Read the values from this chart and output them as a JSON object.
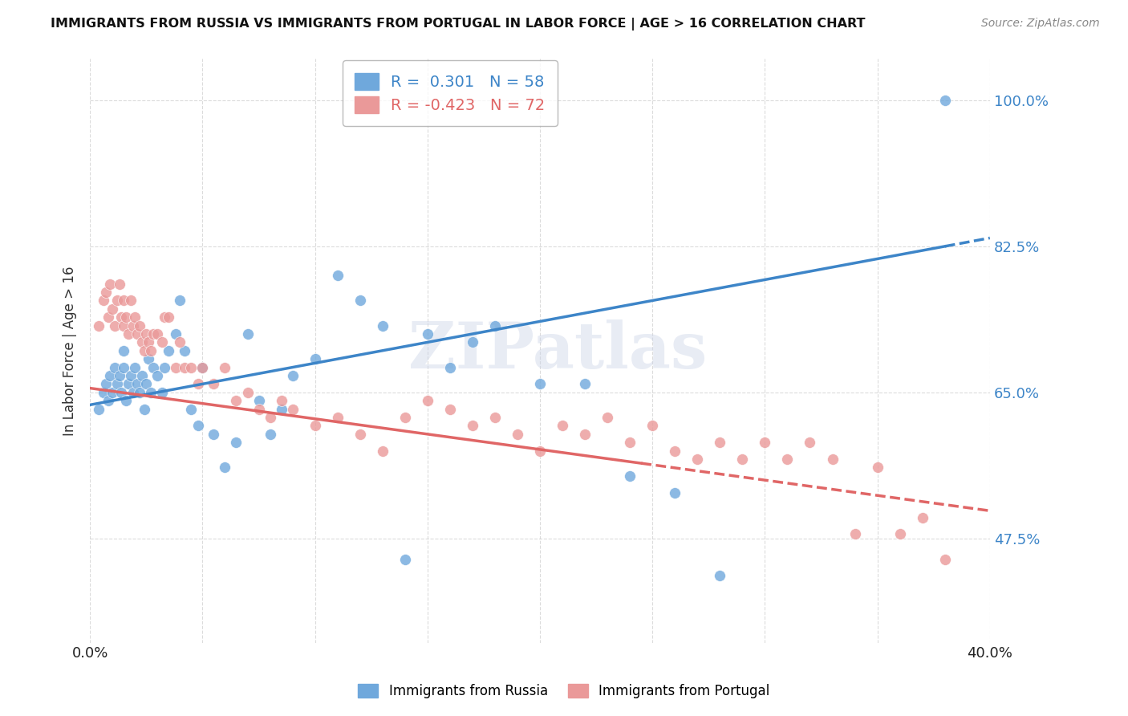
{
  "title": "IMMIGRANTS FROM RUSSIA VS IMMIGRANTS FROM PORTUGAL IN LABOR FORCE | AGE > 16 CORRELATION CHART",
  "source": "Source: ZipAtlas.com",
  "ylabel": "In Labor Force | Age > 16",
  "ytick_labels": [
    "100.0%",
    "82.5%",
    "65.0%",
    "47.5%"
  ],
  "ytick_values": [
    1.0,
    0.825,
    0.65,
    0.475
  ],
  "xlim": [
    0.0,
    0.4
  ],
  "ylim": [
    0.35,
    1.05
  ],
  "russia_color": "#6fa8dc",
  "portugal_color": "#ea9999",
  "russia_line_color": "#3d85c8",
  "portugal_line_color": "#e06666",
  "russia_R": 0.301,
  "russia_N": 58,
  "portugal_R": -0.423,
  "portugal_N": 72,
  "russia_line_x0": 0.0,
  "russia_line_y0": 0.635,
  "russia_line_x1": 0.38,
  "russia_line_y1": 0.825,
  "russia_line_xdash_start": 0.38,
  "russia_line_xdash_end": 0.4,
  "portugal_line_x0": 0.0,
  "portugal_line_y0": 0.655,
  "portugal_line_x1": 0.245,
  "portugal_line_y1": 0.565,
  "portugal_line_xdash_start": 0.245,
  "portugal_line_xdash_end": 0.4,
  "russia_scatter_x": [
    0.004,
    0.006,
    0.007,
    0.008,
    0.009,
    0.01,
    0.011,
    0.012,
    0.013,
    0.014,
    0.015,
    0.015,
    0.016,
    0.017,
    0.018,
    0.019,
    0.02,
    0.021,
    0.022,
    0.023,
    0.024,
    0.025,
    0.026,
    0.027,
    0.028,
    0.03,
    0.032,
    0.033,
    0.035,
    0.038,
    0.04,
    0.042,
    0.045,
    0.048,
    0.05,
    0.055,
    0.06,
    0.065,
    0.07,
    0.075,
    0.08,
    0.085,
    0.09,
    0.1,
    0.11,
    0.12,
    0.13,
    0.14,
    0.15,
    0.16,
    0.17,
    0.18,
    0.2,
    0.22,
    0.24,
    0.26,
    0.28,
    0.38
  ],
  "russia_scatter_y": [
    0.63,
    0.65,
    0.66,
    0.64,
    0.67,
    0.65,
    0.68,
    0.66,
    0.67,
    0.65,
    0.68,
    0.7,
    0.64,
    0.66,
    0.67,
    0.65,
    0.68,
    0.66,
    0.65,
    0.67,
    0.63,
    0.66,
    0.69,
    0.65,
    0.68,
    0.67,
    0.65,
    0.68,
    0.7,
    0.72,
    0.76,
    0.7,
    0.63,
    0.61,
    0.68,
    0.6,
    0.56,
    0.59,
    0.72,
    0.64,
    0.6,
    0.63,
    0.67,
    0.69,
    0.79,
    0.76,
    0.73,
    0.45,
    0.72,
    0.68,
    0.71,
    0.73,
    0.66,
    0.66,
    0.55,
    0.53,
    0.43,
    1.0
  ],
  "portugal_scatter_x": [
    0.004,
    0.006,
    0.007,
    0.008,
    0.009,
    0.01,
    0.011,
    0.012,
    0.013,
    0.014,
    0.015,
    0.015,
    0.016,
    0.017,
    0.018,
    0.019,
    0.02,
    0.021,
    0.022,
    0.023,
    0.024,
    0.025,
    0.026,
    0.027,
    0.028,
    0.03,
    0.032,
    0.033,
    0.035,
    0.038,
    0.04,
    0.042,
    0.045,
    0.048,
    0.05,
    0.055,
    0.06,
    0.065,
    0.07,
    0.075,
    0.08,
    0.085,
    0.09,
    0.1,
    0.11,
    0.12,
    0.13,
    0.14,
    0.15,
    0.16,
    0.17,
    0.18,
    0.19,
    0.2,
    0.21,
    0.22,
    0.23,
    0.24,
    0.25,
    0.26,
    0.27,
    0.28,
    0.29,
    0.3,
    0.31,
    0.32,
    0.33,
    0.34,
    0.35,
    0.36,
    0.37,
    0.38
  ],
  "portugal_scatter_y": [
    0.73,
    0.76,
    0.77,
    0.74,
    0.78,
    0.75,
    0.73,
    0.76,
    0.78,
    0.74,
    0.76,
    0.73,
    0.74,
    0.72,
    0.76,
    0.73,
    0.74,
    0.72,
    0.73,
    0.71,
    0.7,
    0.72,
    0.71,
    0.7,
    0.72,
    0.72,
    0.71,
    0.74,
    0.74,
    0.68,
    0.71,
    0.68,
    0.68,
    0.66,
    0.68,
    0.66,
    0.68,
    0.64,
    0.65,
    0.63,
    0.62,
    0.64,
    0.63,
    0.61,
    0.62,
    0.6,
    0.58,
    0.62,
    0.64,
    0.63,
    0.61,
    0.62,
    0.6,
    0.58,
    0.61,
    0.6,
    0.62,
    0.59,
    0.61,
    0.58,
    0.57,
    0.59,
    0.57,
    0.59,
    0.57,
    0.59,
    0.57,
    0.48,
    0.56,
    0.48,
    0.5,
    0.45
  ],
  "watermark": "ZIPatlas",
  "background_color": "#ffffff",
  "grid_color": "#cccccc"
}
